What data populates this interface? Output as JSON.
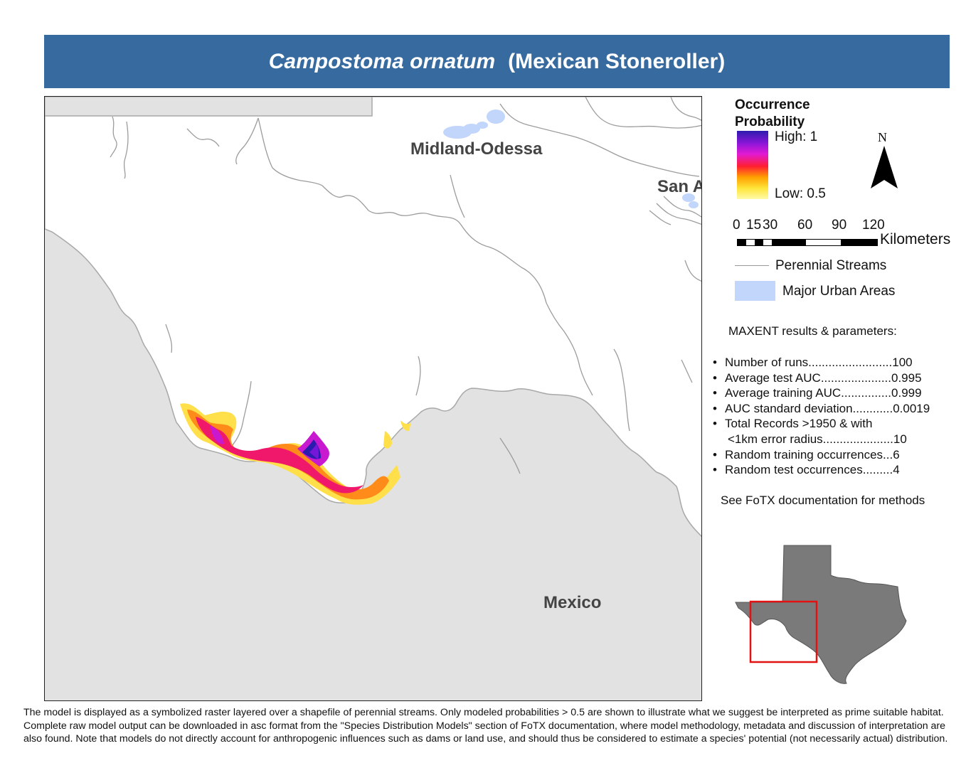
{
  "title": {
    "scientific_name": "Campostoma ornatum",
    "common_name": "(Mexican Stoneroller)"
  },
  "map": {
    "labels": {
      "city_midland": "Midland-Odessa",
      "city_san": "San A",
      "country": "Mexico"
    },
    "colors": {
      "outside_land": "#e2e2e2",
      "texas": "#ffffff",
      "streams": "#9c9c9c",
      "urban": "#c2d5fb"
    }
  },
  "legend": {
    "title_line1": "Occurrence",
    "title_line2": "Probability",
    "high_label": "High: 1",
    "low_label": "Low: 0.5",
    "scale_ticks": [
      "0",
      "15",
      "30",
      "60",
      "90",
      "120"
    ],
    "scale_unit": "Kilometers",
    "north_label": "N",
    "streams_label": "Perennial Streams",
    "urban_label": "Major Urban Areas"
  },
  "maxent": {
    "heading": "MAXENT results & parameters:",
    "params": [
      {
        "bullet": "•",
        "text": "Number of runs.........................100"
      },
      {
        "bullet": "•",
        "text": "Average test AUC.....................0.995"
      },
      {
        "bullet": "•",
        "text": "Average training AUC...............0.999"
      },
      {
        "bullet": "•",
        "text": "AUC standard deviation............0.0019"
      },
      {
        "bullet": "•",
        "text": "Total Records >1950 & with"
      },
      {
        "bullet": "",
        "text": "<1km error radius.....................10"
      },
      {
        "bullet": "•",
        "text": "Random training occurrences...6"
      },
      {
        "bullet": "•",
        "text": "Random test occurrences.........4"
      }
    ],
    "see_doc": "See FoTX documentation for methods"
  },
  "footnote": "The model is displayed as a symbolized raster layered over a shapefile of perennial streams. Only modeled probabilities > 0.5 are shown to illustrate what we suggest be interpreted as prime suitable habitat. Complete raw model output can be downloaded in asc format from the \"Species Distribution Models\" section of FoTX documentation, where model methodology, metadata and discussion of interpretation are also found. Note that models do not directly account for anthropogenic influences such as dams or land use, and should thus be considered to estimate a species' potential (not necessarily actual) distribution."
}
